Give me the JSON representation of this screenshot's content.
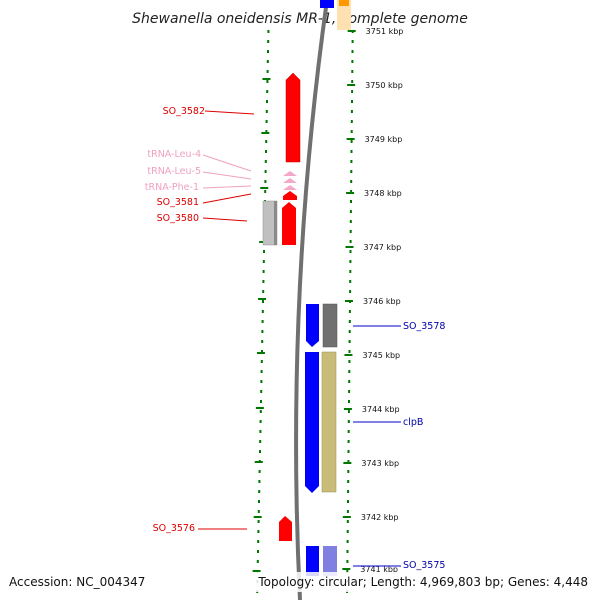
{
  "title": "Shewanella oneidensis MR-1, complete genome",
  "accession": "Accession: NC_004347",
  "topology": "Topology: circular; Length: 4,969,803 bp; Genes: 4,448",
  "colors": {
    "leftStrand": "#ff0000",
    "rightStrand": "#0000ff",
    "tRNA": "#f0a0c0",
    "tick": "#007700",
    "backbone": "#808080",
    "grayGene": "#777777",
    "lightGrayGene": "#c0c0c0",
    "khakiGene": "#c8b878",
    "orangeGene": "#ff9900",
    "purpleGene": "#8080e0"
  },
  "ticks": [
    "3751 kbp",
    "3750 kbp",
    "3749 kbp",
    "3748 kbp",
    "3747 kbp",
    "3746 kbp",
    "3745 kbp",
    "3744 kbp",
    "3743 kbp",
    "3742 kbp",
    "3741 kbp"
  ],
  "genes": [
    {
      "name": "SO_3582",
      "strand": "left",
      "color": "red",
      "labelColor": "red"
    },
    {
      "name": "tRNA-Leu-4",
      "strand": "left",
      "color": "pink",
      "labelColor": "pink"
    },
    {
      "name": "tRNA-Leu-5",
      "strand": "left",
      "color": "pink",
      "labelColor": "pink"
    },
    {
      "name": "tRNA-Phe-1",
      "strand": "left",
      "color": "pink",
      "labelColor": "pink"
    },
    {
      "name": "SO_3581",
      "strand": "left",
      "color": "red",
      "labelColor": "red"
    },
    {
      "name": "SO_3580",
      "strand": "left",
      "color": "red",
      "labelColor": "red"
    },
    {
      "name": "SO_3578",
      "strand": "right",
      "color": "blue",
      "labelColor": "blue"
    },
    {
      "name": "clpB",
      "strand": "right",
      "color": "blue",
      "labelColor": "blue"
    },
    {
      "name": "SO_3576",
      "strand": "left",
      "color": "red",
      "labelColor": "red"
    },
    {
      "name": "SO_3575",
      "strand": "right",
      "color": "blue",
      "labelColor": "blue"
    }
  ]
}
